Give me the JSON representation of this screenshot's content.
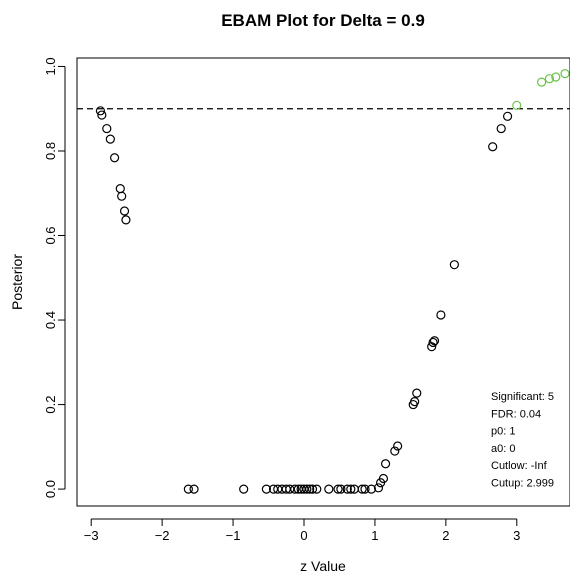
{
  "chart_data": {
    "type": "scatter",
    "title": "EBAM Plot for Delta = 0.9",
    "xlabel": "z Value",
    "ylabel": "Posterior",
    "xlim": [
      -3.2,
      3.75
    ],
    "ylim": [
      -0.04,
      1.02
    ],
    "x_ticks": [
      -3,
      -2,
      -1,
      0,
      1,
      2,
      3
    ],
    "x_tick_labels": [
      "−3",
      "−2",
      "−1",
      "0",
      "1",
      "2",
      "3"
    ],
    "y_ticks": [
      0.0,
      0.2,
      0.4,
      0.6,
      0.8,
      1.0
    ],
    "y_tick_labels": [
      "0.0",
      "0.2",
      "0.4",
      "0.6",
      "0.8",
      "1.0"
    ],
    "threshold": 0.9,
    "threshold_style": "dashed",
    "grid": false,
    "colors": {
      "points": "#000000",
      "significant": "#6cc24a",
      "threshold": "#000000"
    },
    "series": [
      {
        "values": [
          [
            -2.87,
            0.895
          ],
          [
            -2.85,
            0.885
          ],
          [
            -2.78,
            0.853
          ],
          [
            -2.73,
            0.828
          ],
          [
            -2.67,
            0.784
          ],
          [
            -2.59,
            0.711
          ],
          [
            -2.57,
            0.693
          ],
          [
            -2.53,
            0.658
          ],
          [
            -2.51,
            0.637
          ],
          [
            -1.63,
            0.0
          ],
          [
            -1.55,
            0.0
          ],
          [
            -0.85,
            0.0
          ],
          [
            -0.53,
            0.0
          ],
          [
            -0.43,
            0.0
          ],
          [
            -0.37,
            0.0
          ],
          [
            -0.31,
            0.0
          ],
          [
            -0.25,
            0.0
          ],
          [
            -0.2,
            0.0
          ],
          [
            -0.13,
            0.0
          ],
          [
            -0.08,
            0.0
          ],
          [
            -0.04,
            0.0
          ],
          [
            0.0,
            0.0
          ],
          [
            0.04,
            0.0
          ],
          [
            0.08,
            0.0
          ],
          [
            0.12,
            0.0
          ],
          [
            0.18,
            0.0
          ],
          [
            0.35,
            0.0
          ],
          [
            0.48,
            0.0
          ],
          [
            0.52,
            0.0
          ],
          [
            0.61,
            0.0
          ],
          [
            0.66,
            0.0
          ],
          [
            0.71,
            0.0
          ],
          [
            0.82,
            0.0
          ],
          [
            0.86,
            0.0
          ],
          [
            0.95,
            0.0
          ],
          [
            1.05,
            0.003
          ],
          [
            1.08,
            0.015
          ],
          [
            1.12,
            0.025
          ],
          [
            1.15,
            0.06
          ],
          [
            1.28,
            0.09
          ],
          [
            1.32,
            0.102
          ],
          [
            1.54,
            0.2
          ],
          [
            1.56,
            0.207
          ],
          [
            1.59,
            0.227
          ],
          [
            1.8,
            0.337
          ],
          [
            1.82,
            0.347
          ],
          [
            1.84,
            0.351
          ],
          [
            1.93,
            0.412
          ],
          [
            2.12,
            0.531
          ],
          [
            2.66,
            0.81
          ],
          [
            2.78,
            0.853
          ],
          [
            2.87,
            0.882
          ]
        ]
      },
      {
        "values": [
          [
            3.0,
            0.908
          ],
          [
            3.35,
            0.963
          ],
          [
            3.46,
            0.971
          ],
          [
            3.55,
            0.975
          ],
          [
            3.68,
            0.983
          ]
        ]
      }
    ],
    "stats": {
      "labels": [
        "Significant:",
        "FDR:",
        "p0:",
        "a0:",
        "Cutlow:",
        "Cutup:"
      ],
      "values": [
        "5",
        "0.04",
        "1",
        "0",
        "-Inf",
        "2.999"
      ]
    }
  }
}
